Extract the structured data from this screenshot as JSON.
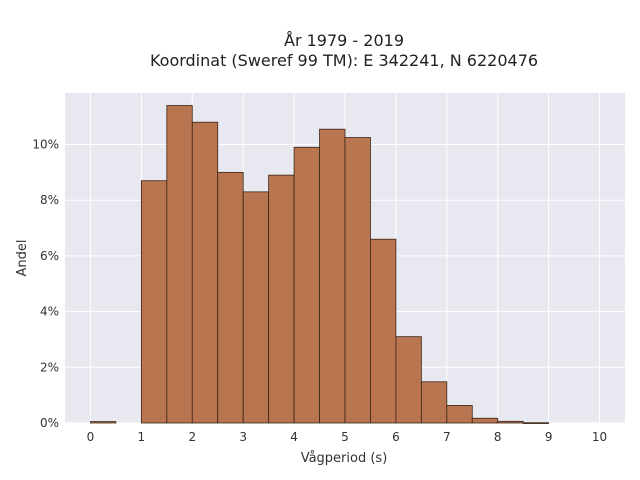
{
  "chart_data": {
    "type": "bar",
    "title_line1": "År 1979 - 2019",
    "title_line2": "Koordinat (Sweref 99 TM): E 342241, N 6220476",
    "xlabel": "Vågperiod (s)",
    "ylabel": "Andel",
    "bin_width": 0.5,
    "bins": [
      {
        "start": 0.0,
        "value": 0.0005
      },
      {
        "start": 0.5,
        "value": 0.0
      },
      {
        "start": 1.0,
        "value": 0.087
      },
      {
        "start": 1.5,
        "value": 0.114
      },
      {
        "start": 2.0,
        "value": 0.108
      },
      {
        "start": 2.5,
        "value": 0.09
      },
      {
        "start": 3.0,
        "value": 0.083
      },
      {
        "start": 3.5,
        "value": 0.089
      },
      {
        "start": 4.0,
        "value": 0.099
      },
      {
        "start": 4.5,
        "value": 0.1055
      },
      {
        "start": 5.0,
        "value": 0.1025
      },
      {
        "start": 5.5,
        "value": 0.066
      },
      {
        "start": 6.0,
        "value": 0.031
      },
      {
        "start": 6.5,
        "value": 0.0148
      },
      {
        "start": 7.0,
        "value": 0.0063
      },
      {
        "start": 7.5,
        "value": 0.0017
      },
      {
        "start": 8.0,
        "value": 0.0006
      },
      {
        "start": 8.5,
        "value": 0.0001
      },
      {
        "start": 9.0,
        "value": 0.0
      },
      {
        "start": 9.5,
        "value": 0.0
      }
    ],
    "xlim": [
      -0.5,
      10.5
    ],
    "ylim": [
      0,
      0.1185
    ],
    "x_ticks": [
      0,
      1,
      2,
      3,
      4,
      5,
      6,
      7,
      8,
      9,
      10
    ],
    "x_tick_labels": [
      "0",
      "1",
      "2",
      "3",
      "4",
      "5",
      "6",
      "7",
      "8",
      "9",
      "10"
    ],
    "y_ticks": [
      0,
      0.02,
      0.04,
      0.06,
      0.08,
      0.1
    ],
    "y_tick_labels": [
      "0%",
      "2%",
      "4%",
      "6%",
      "8%",
      "10%"
    ],
    "grid": true,
    "colors": {
      "bar_fill": "#b87550",
      "bar_edge": "#3a2416",
      "plot_background": "#e8e8f0",
      "grid": "#ffffff"
    }
  }
}
